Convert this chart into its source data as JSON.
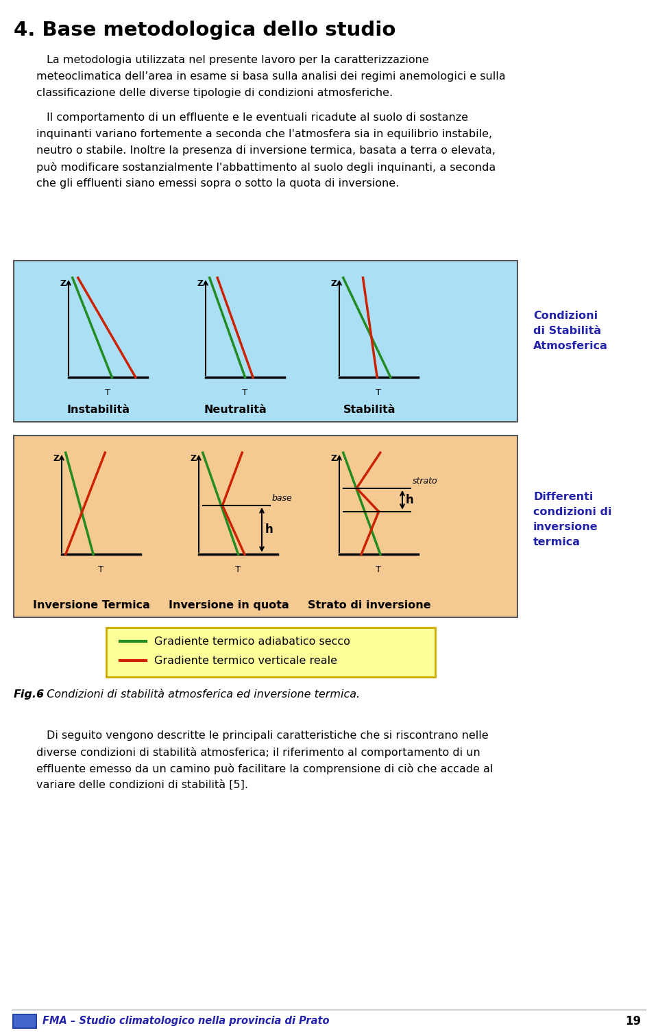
{
  "title": "4. Base metodologica dello studio",
  "lines1": [
    "La metodologia utilizzata nel presente lavoro per la caratterizzazione",
    "meteoclimatica dell’area in esame si basa sulla analisi dei regimi anemologici e sulla",
    "classificazione delle diverse tipologie di condizioni atmosferiche."
  ],
  "lines2": [
    "Il comportamento di un effluente e le eventuali ricadute al suolo di sostanze",
    "inquinanti variano fortemente a seconda che l'atmosfera sia in equilibrio instabile,",
    "neutro o stabile. Inoltre la presenza di inversione termica, basata a terra o elevata,",
    "può modificare sostanzialmente l'abbattimento al suolo degli inquinanti, a seconda",
    "che gli effluenti siano emessi sopra o sotto la quota di inversione."
  ],
  "lines3": [
    "Di seguito vengono descritte le principali caratteristiche che si riscontrano nelle",
    "diverse condizioni di stabilità atmosferica; il riferimento al comportamento di un",
    "effluente emesso da un camino può facilitare la comprensione di ciò che accade al",
    "variare delle condizioni di stabilità [5]."
  ],
  "fig_caption_bold": "Fig.6",
  "fig_caption_rest": " – Condizioni di stabilità atmosferica ed inversione termica.",
  "box1_bg": "#AADFF5",
  "box2_bg": "#F5C992",
  "box1_side_label": "Condizioni\ndi Stabilità\nAtmosferica",
  "box2_side_label": "Differenti\ncondizioni di\ninversione\ntermica",
  "labels_box1": [
    "Instabilità",
    "Neutralità",
    "Stabilità"
  ],
  "labels_box2": [
    "Inversione Termica",
    "Inversione in quota",
    "Strato di inversione"
  ],
  "green_color": "#228B22",
  "red_color": "#CC2200",
  "legend_bg": "#FFFF99",
  "legend_border": "#CCAA00",
  "legend_line1": "Gradiente termico adiabatico secco",
  "legend_line2": "Gradiente termico verticale reale",
  "footer_text": "FMA – Studio climatologico nella provincia di Prato",
  "footer_page": "19",
  "side_label_color": "#2222AA",
  "footer_color": "#2222AA"
}
